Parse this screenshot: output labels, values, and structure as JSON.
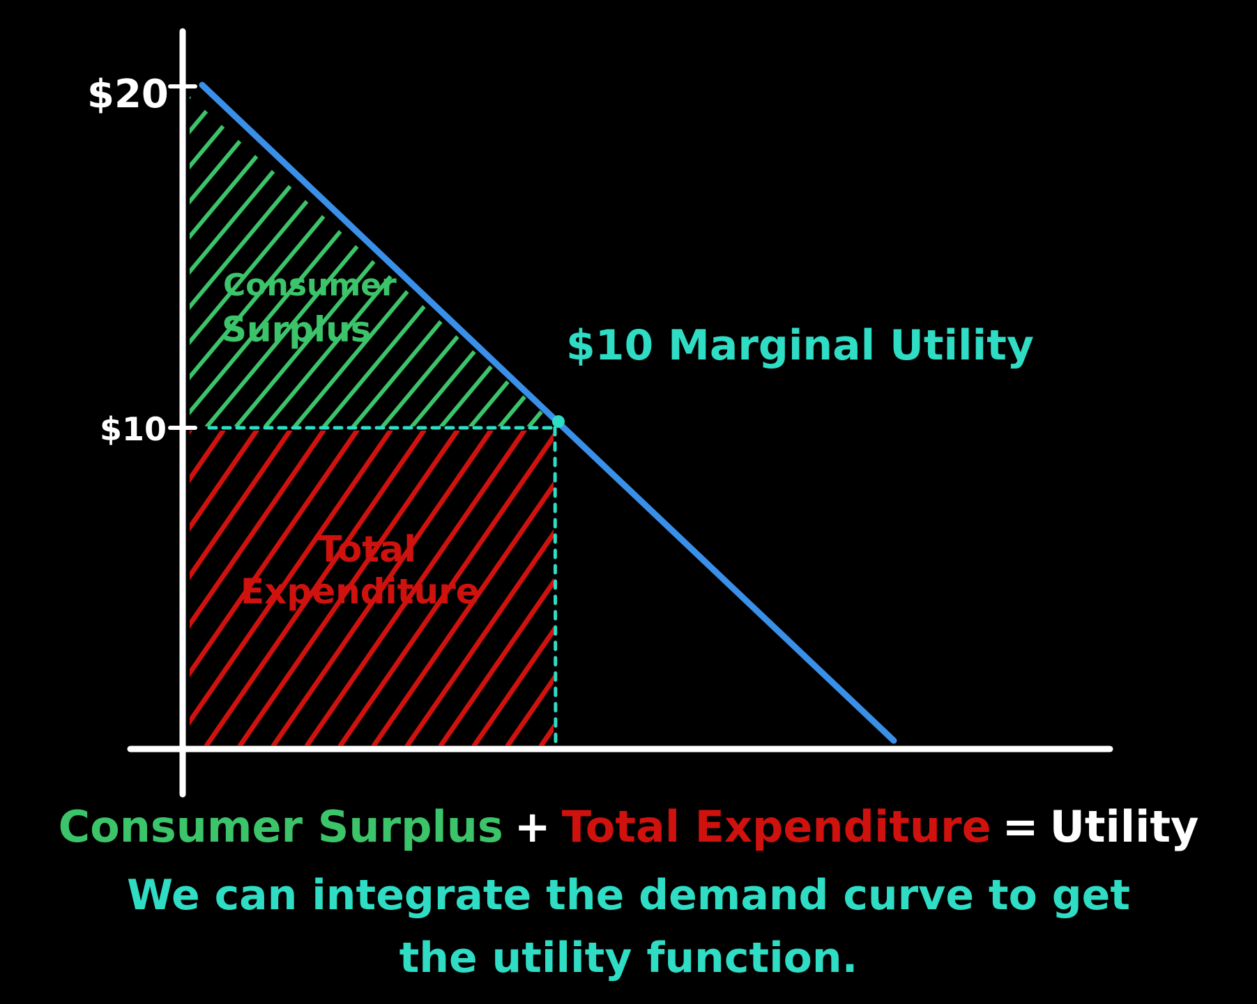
{
  "colors": {
    "background": "#000000",
    "axis": "#ffffff",
    "demand_line": "#3a8fe8",
    "consumer_surplus": "#3cc46a",
    "total_expenditure": "#d0120f",
    "annotation": "#2fdcc4",
    "utility_text": "#ffffff"
  },
  "axis_labels": {
    "y_top": "$20",
    "y_mid": "$10"
  },
  "regions": {
    "consumer_surplus": [
      "Consumer",
      "Surplus"
    ],
    "total_expenditure": [
      "Total",
      "Expenditure"
    ]
  },
  "annotation": "$10 Marginal Utility",
  "caption": {
    "term1": "Consumer Surplus",
    "plus": "+",
    "term2": "Total Expenditure",
    "equals": "=",
    "result": "Utility",
    "line2": "We can integrate the demand curve to get",
    "line3": "the utility function."
  }
}
